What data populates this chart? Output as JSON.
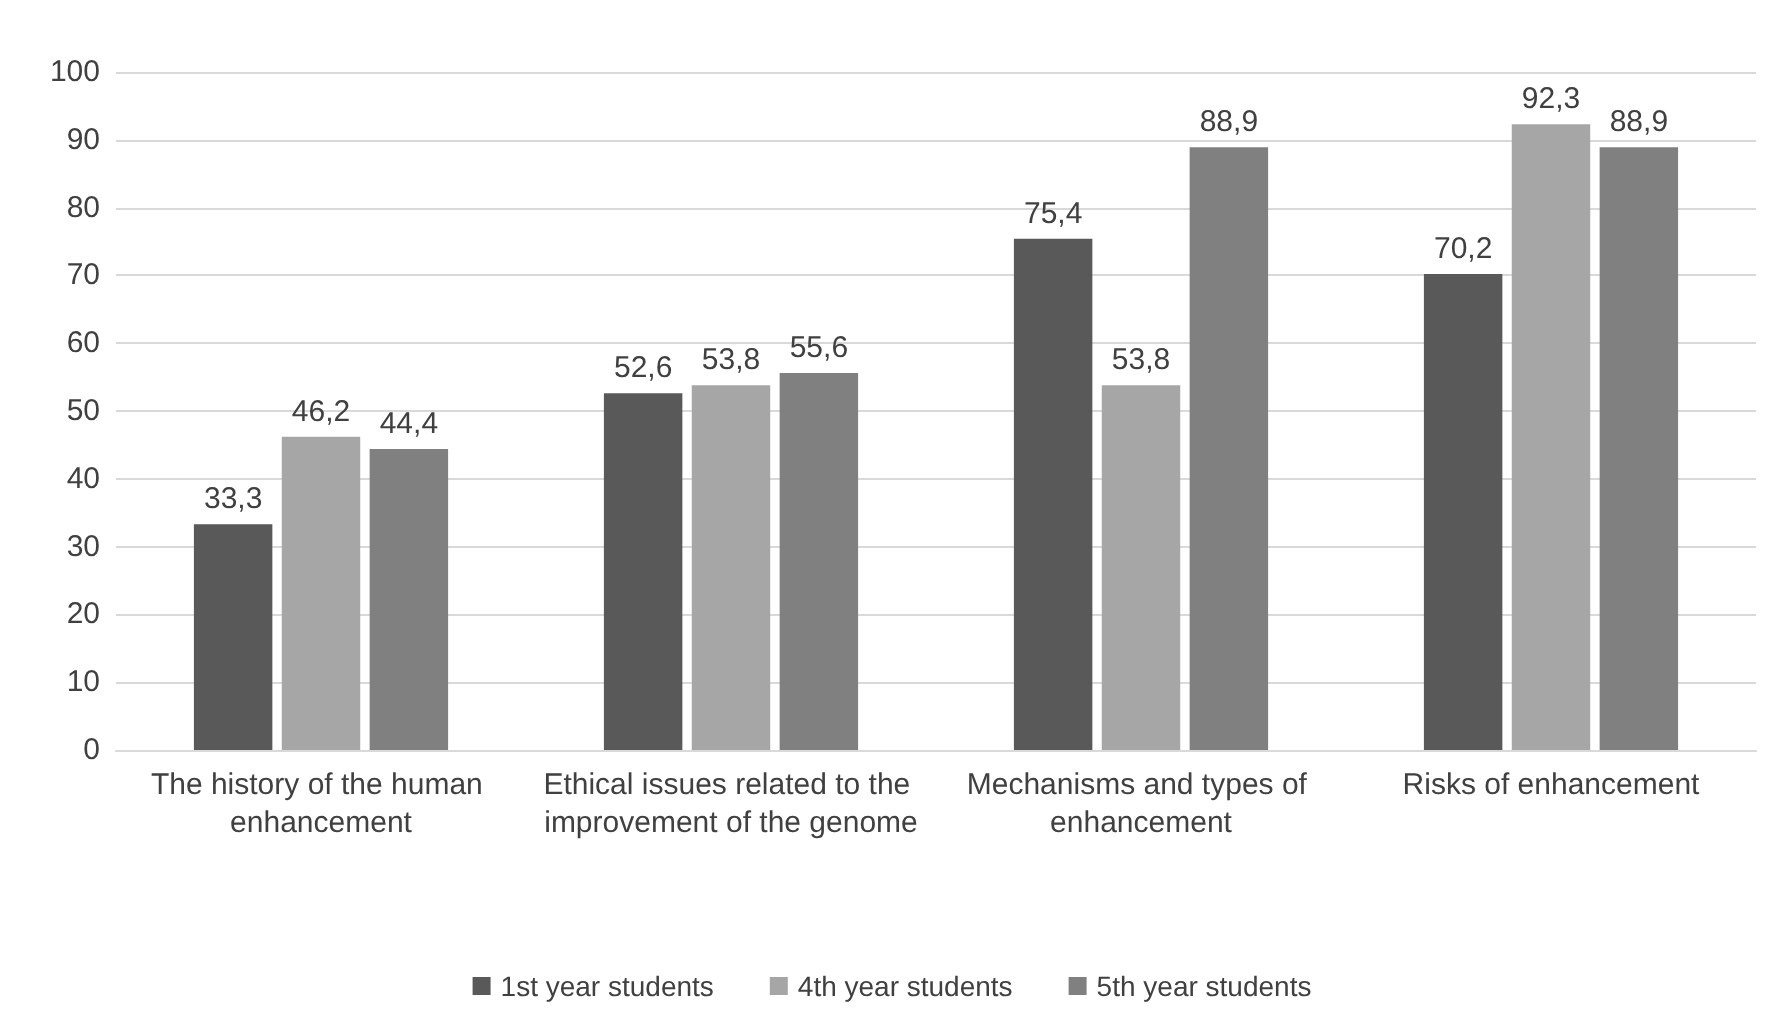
{
  "chart_data": {
    "type": "bar",
    "categories": [
      "The history of the human enhancement",
      "Ethical issues related to the improvement of the genome",
      "Mechanisms and types of enhancement",
      "Risks of enhancement"
    ],
    "series": [
      {
        "name": "1st year students",
        "color": "#595959",
        "values": [
          33.3,
          52.6,
          75.4,
          70.2
        ],
        "value_labels": [
          "33,3",
          "52,6",
          "75,4",
          "70,2"
        ]
      },
      {
        "name": "4th year students",
        "color": "#a6a6a6",
        "values": [
          46.2,
          53.8,
          53.8,
          92.3
        ],
        "value_labels": [
          "46,2",
          "53,8",
          "53,8",
          "92,3"
        ]
      },
      {
        "name": "5th year students",
        "color": "#808080",
        "values": [
          44.4,
          55.6,
          88.9,
          88.9
        ],
        "value_labels": [
          "44,4",
          "55,6",
          "88,9",
          "88,9"
        ]
      }
    ],
    "ylim": [
      0,
      100
    ],
    "yticks": [
      0,
      10,
      20,
      30,
      40,
      50,
      60,
      70,
      80,
      90,
      100
    ],
    "grid": "y",
    "legend": "bottom"
  }
}
